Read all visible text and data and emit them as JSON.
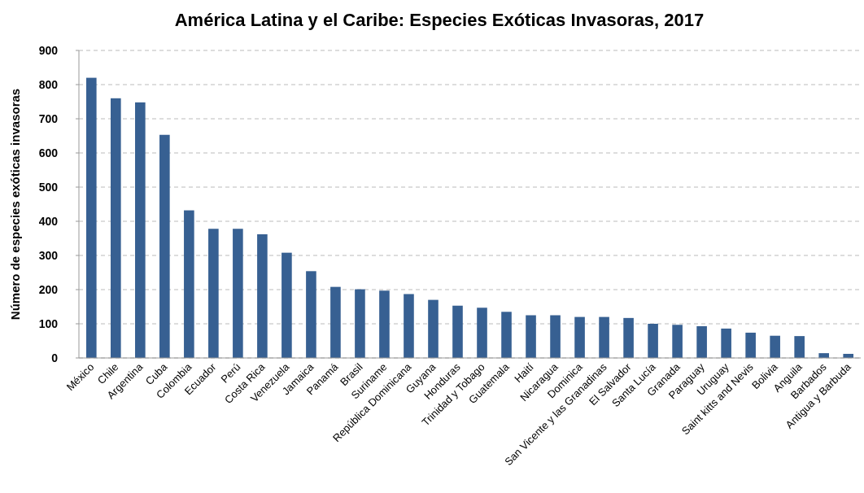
{
  "chart_data": {
    "type": "bar",
    "title": "América Latina y el Caribe: Especies Exóticas Invasoras, 2017",
    "ylabel": "Número de especies exóticas invasoras",
    "categories": [
      "México",
      "Chile",
      "Argentina",
      "Cuba",
      "Colombia",
      "Ecuador",
      "Perú",
      "Costa Rica",
      "Venezuela",
      "Jamaica",
      "Panamá",
      "Brasil",
      "Suriname",
      "República Dominicana",
      "Guyana",
      "Honduras",
      "Trinidad y Tobago",
      "Guatemala",
      "Haití",
      "Nicaragua",
      "Dominica",
      "San Vicente y las Granadinas",
      "El Salvador",
      "Santa Lucía",
      "Granada",
      "Paraguay",
      "Uruguay",
      "Saint kitts and Nevis",
      "Bolivia",
      "Anguila",
      "Barbados",
      "Antigua y Barbuda"
    ],
    "values": [
      820,
      760,
      748,
      653,
      432,
      378,
      378,
      362,
      308,
      254,
      208,
      201,
      197,
      187,
      170,
      153,
      147,
      135,
      125,
      125,
      120,
      120,
      117,
      100,
      97,
      93,
      86,
      74,
      65,
      64,
      14,
      12
    ],
    "color": "#376092",
    "ylim": [
      0,
      900
    ],
    "yticks": [
      0,
      100,
      200,
      300,
      400,
      500,
      600,
      700,
      800,
      900
    ],
    "grid": "y"
  }
}
